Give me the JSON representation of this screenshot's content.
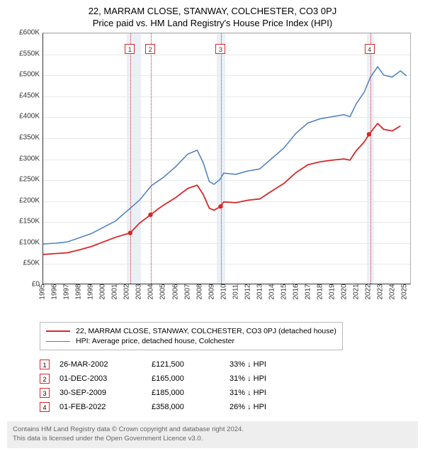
{
  "title_line1": "22, MARRAM CLOSE, STANWAY, COLCHESTER, CO3 0PJ",
  "title_line2": "Price paid vs. HM Land Registry's House Price Index (HPI)",
  "chart": {
    "type": "line",
    "background_color": "#ffffff",
    "grid_color": "#e8e8e8",
    "plot_border_color": "#333333",
    "xmin": 1995,
    "xmax": 2025.5,
    "ymin": 0,
    "ymax": 600000,
    "ytick_step": 50000,
    "ytick_labels": [
      "£0",
      "£50K",
      "£100K",
      "£150K",
      "£200K",
      "£250K",
      "£300K",
      "£350K",
      "£400K",
      "£450K",
      "£500K",
      "£550K",
      "£600K"
    ],
    "xtick_labels": [
      "1995",
      "1996",
      "1997",
      "1998",
      "1999",
      "2000",
      "2001",
      "2002",
      "2003",
      "2004",
      "2005",
      "2006",
      "2007",
      "2008",
      "2009",
      "2010",
      "2011",
      "2012",
      "2013",
      "2014",
      "2015",
      "2016",
      "2017",
      "2018",
      "2019",
      "2020",
      "2021",
      "2022",
      "2023",
      "2024",
      "2025"
    ],
    "shade_ranges": [
      {
        "x0": 2001.9,
        "x1": 2003.1,
        "color": "#e3eaf3"
      },
      {
        "x0": 2009.35,
        "x1": 2010.1,
        "color": "#e3eaf3"
      },
      {
        "x0": 2021.8,
        "x1": 2022.4,
        "color": "#e3eaf3"
      }
    ],
    "vlines": [
      {
        "x": 2002.23,
        "color": "#d62728",
        "marker": "1"
      },
      {
        "x": 2003.92,
        "color": "#d62728",
        "marker": "2"
      },
      {
        "x": 2009.75,
        "color": "#d62728",
        "marker": "3"
      },
      {
        "x": 2022.08,
        "color": "#d62728",
        "marker": "4"
      }
    ],
    "marker_top_y": 16,
    "series": [
      {
        "name": "hpi",
        "label": "HPI: Average price, detached house, Colchester",
        "color": "#4a7ebb",
        "line_width": 1.5,
        "points": [
          [
            1995,
            95000
          ],
          [
            1996,
            97000
          ],
          [
            1997,
            100000
          ],
          [
            1998,
            110000
          ],
          [
            1999,
            120000
          ],
          [
            2000,
            135000
          ],
          [
            2001,
            150000
          ],
          [
            2002,
            175000
          ],
          [
            2003,
            200000
          ],
          [
            2004,
            235000
          ],
          [
            2005,
            255000
          ],
          [
            2006,
            280000
          ],
          [
            2007,
            310000
          ],
          [
            2007.8,
            320000
          ],
          [
            2008.3,
            290000
          ],
          [
            2008.8,
            245000
          ],
          [
            2009.2,
            238000
          ],
          [
            2009.7,
            250000
          ],
          [
            2010,
            265000
          ],
          [
            2011,
            262000
          ],
          [
            2012,
            270000
          ],
          [
            2013,
            275000
          ],
          [
            2014,
            300000
          ],
          [
            2015,
            325000
          ],
          [
            2016,
            360000
          ],
          [
            2017,
            385000
          ],
          [
            2018,
            395000
          ],
          [
            2019,
            400000
          ],
          [
            2020,
            405000
          ],
          [
            2020.5,
            400000
          ],
          [
            2021,
            430000
          ],
          [
            2021.7,
            460000
          ],
          [
            2022.2,
            495000
          ],
          [
            2022.8,
            520000
          ],
          [
            2023.3,
            500000
          ],
          [
            2024,
            495000
          ],
          [
            2024.7,
            510000
          ],
          [
            2025.2,
            498000
          ]
        ]
      },
      {
        "name": "property",
        "label": "22, MARRAM CLOSE, STANWAY, COLCHESTER, CO3 0PJ (detached house)",
        "color": "#d62728",
        "line_width": 1.8,
        "points": [
          [
            1995,
            70000
          ],
          [
            1996,
            72000
          ],
          [
            1997,
            74000
          ],
          [
            1998,
            81000
          ],
          [
            1999,
            89000
          ],
          [
            2000,
            100000
          ],
          [
            2001,
            111000
          ],
          [
            2002.23,
            121500
          ],
          [
            2003,
            145000
          ],
          [
            2003.92,
            165000
          ],
          [
            2004.5,
            178000
          ],
          [
            2005,
            188000
          ],
          [
            2006,
            206000
          ],
          [
            2007,
            228000
          ],
          [
            2007.8,
            236000
          ],
          [
            2008.3,
            214000
          ],
          [
            2008.8,
            181000
          ],
          [
            2009.2,
            176000
          ],
          [
            2009.75,
            185000
          ],
          [
            2010,
            196000
          ],
          [
            2011,
            194000
          ],
          [
            2012,
            200000
          ],
          [
            2013,
            203000
          ],
          [
            2014,
            222000
          ],
          [
            2015,
            240000
          ],
          [
            2016,
            266000
          ],
          [
            2017,
            285000
          ],
          [
            2018,
            292000
          ],
          [
            2019,
            296000
          ],
          [
            2020,
            299000
          ],
          [
            2020.5,
            296000
          ],
          [
            2021,
            318000
          ],
          [
            2021.7,
            340000
          ],
          [
            2022.08,
            358000
          ],
          [
            2022.8,
            384000
          ],
          [
            2023.3,
            370000
          ],
          [
            2024,
            366000
          ],
          [
            2024.7,
            378000
          ]
        ],
        "dots": [
          [
            2002.23,
            121500
          ],
          [
            2003.92,
            165000
          ],
          [
            2009.75,
            185000
          ],
          [
            2022.08,
            358000
          ]
        ]
      }
    ]
  },
  "legend": {
    "items": [
      {
        "color": "#d62728",
        "width": 2,
        "label": "22, MARRAM CLOSE, STANWAY, COLCHESTER, CO3 0PJ (detached house)"
      },
      {
        "color": "#4a7ebb",
        "width": 1.5,
        "label": "HPI: Average price, detached house, Colchester"
      }
    ]
  },
  "transactions": [
    {
      "n": "1",
      "date": "26-MAR-2002",
      "price": "£121,500",
      "diff": "33% ↓ HPI"
    },
    {
      "n": "2",
      "date": "01-DEC-2003",
      "price": "£165,000",
      "diff": "31% ↓ HPI"
    },
    {
      "n": "3",
      "date": "30-SEP-2009",
      "price": "£185,000",
      "diff": "31% ↓ HPI"
    },
    {
      "n": "4",
      "date": "01-FEB-2022",
      "price": "£358,000",
      "diff": "26% ↓ HPI"
    }
  ],
  "footer_line1": "Contains HM Land Registry data © Crown copyright and database right 2024.",
  "footer_line2": "This data is licensed under the Open Government Licence v3.0."
}
